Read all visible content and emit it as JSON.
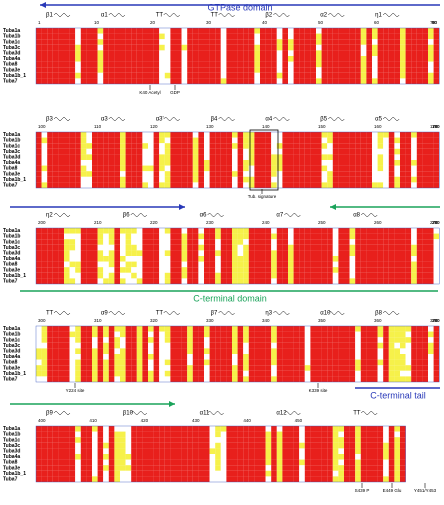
{
  "sequences": [
    "Tuba1a",
    "Tuba1b",
    "Tuba1c",
    "Tuba3c",
    "Tuba3d",
    "Tuba4a",
    "Tuba8",
    "Tuba3e",
    "Tuba1b_1",
    "Tuba7"
  ],
  "domains": {
    "gtpase": "GTPase domain",
    "cterm": "C-terminal domain",
    "tail": "C-terminal tail"
  },
  "blocks": [
    {
      "ss": [
        "β1",
        "α1",
        "TT",
        "TT",
        "β2",
        "α2",
        "η1"
      ],
      "numbers": [
        "1",
        "10",
        "20",
        "30",
        "40",
        "50",
        "60",
        "70",
        "80",
        "90"
      ],
      "annotations": [
        "K40 Acetyl",
        "GDP"
      ]
    },
    {
      "ss": [
        "β3",
        "α3",
        "α3'",
        "β4",
        "α4",
        "β5",
        "α5"
      ],
      "numbers": [
        "100",
        "110",
        "120",
        "130",
        "140",
        "150",
        "160",
        "170",
        "180",
        "190"
      ],
      "annotations": [
        "Tub. signature"
      ]
    },
    {
      "ss": [
        "η2",
        "β6",
        "α6",
        "α7",
        "α8"
      ],
      "numbers": [
        "200",
        "210",
        "220",
        "230",
        "240",
        "250",
        "260",
        "270",
        "280",
        "290"
      ],
      "annotations": []
    },
    {
      "ss": [
        "TT",
        "α9",
        "TT",
        "β7",
        "η3",
        "α10",
        "β8"
      ],
      "numbers": [
        "300",
        "310",
        "320",
        "330",
        "340",
        "350",
        "360",
        "370",
        "380",
        "390"
      ],
      "annotations": [
        "Y224 site",
        "K339 site"
      ]
    },
    {
      "ss": [
        "β9",
        "β10",
        "α11",
        "α12",
        "TT"
      ],
      "numbers": [
        "400",
        "410",
        "420",
        "430",
        "440",
        "450"
      ],
      "annotations": [
        "S439 P",
        "E449 Glu",
        "Y451/Y453"
      ]
    }
  ]
}
